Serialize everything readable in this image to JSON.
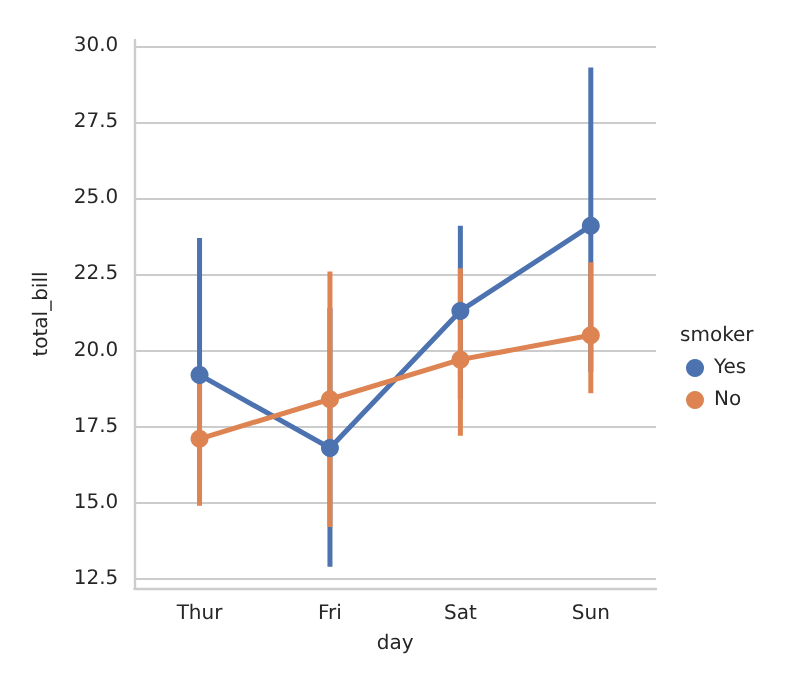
{
  "chart_data": {
    "type": "line",
    "xlabel": "day",
    "ylabel": "total_bill",
    "legend_title": "smoker",
    "categories": [
      "Thur",
      "Fri",
      "Sat",
      "Sun"
    ],
    "series": [
      {
        "name": "Yes",
        "color": "#4c72b0",
        "values": [
          19.2,
          16.8,
          21.3,
          24.1
        ],
        "errors": [
          [
            15.8,
            23.7
          ],
          [
            12.9,
            21.4
          ],
          [
            18.4,
            24.1
          ],
          [
            19.3,
            29.3
          ]
        ]
      },
      {
        "name": "No",
        "color": "#dd8452",
        "values": [
          17.1,
          18.4,
          19.7,
          20.5
        ],
        "errors": [
          [
            14.9,
            19.3
          ],
          [
            14.2,
            22.6
          ],
          [
            17.2,
            22.7
          ],
          [
            18.6,
            22.9
          ]
        ]
      }
    ],
    "ylim": [
      12.2,
      30.2
    ],
    "yticks": [
      12.5,
      {
        "value": 15,
        "label": "15.0"
      },
      17.5,
      {
        "value": 20,
        "label": "20.0"
      },
      22.5,
      {
        "value": 25,
        "label": "25.0"
      },
      27.5,
      {
        "value": 30,
        "label": "30.0"
      }
    ],
    "grid": "y",
    "legend": "right",
    "marker": "circle",
    "line_style": "solid"
  }
}
